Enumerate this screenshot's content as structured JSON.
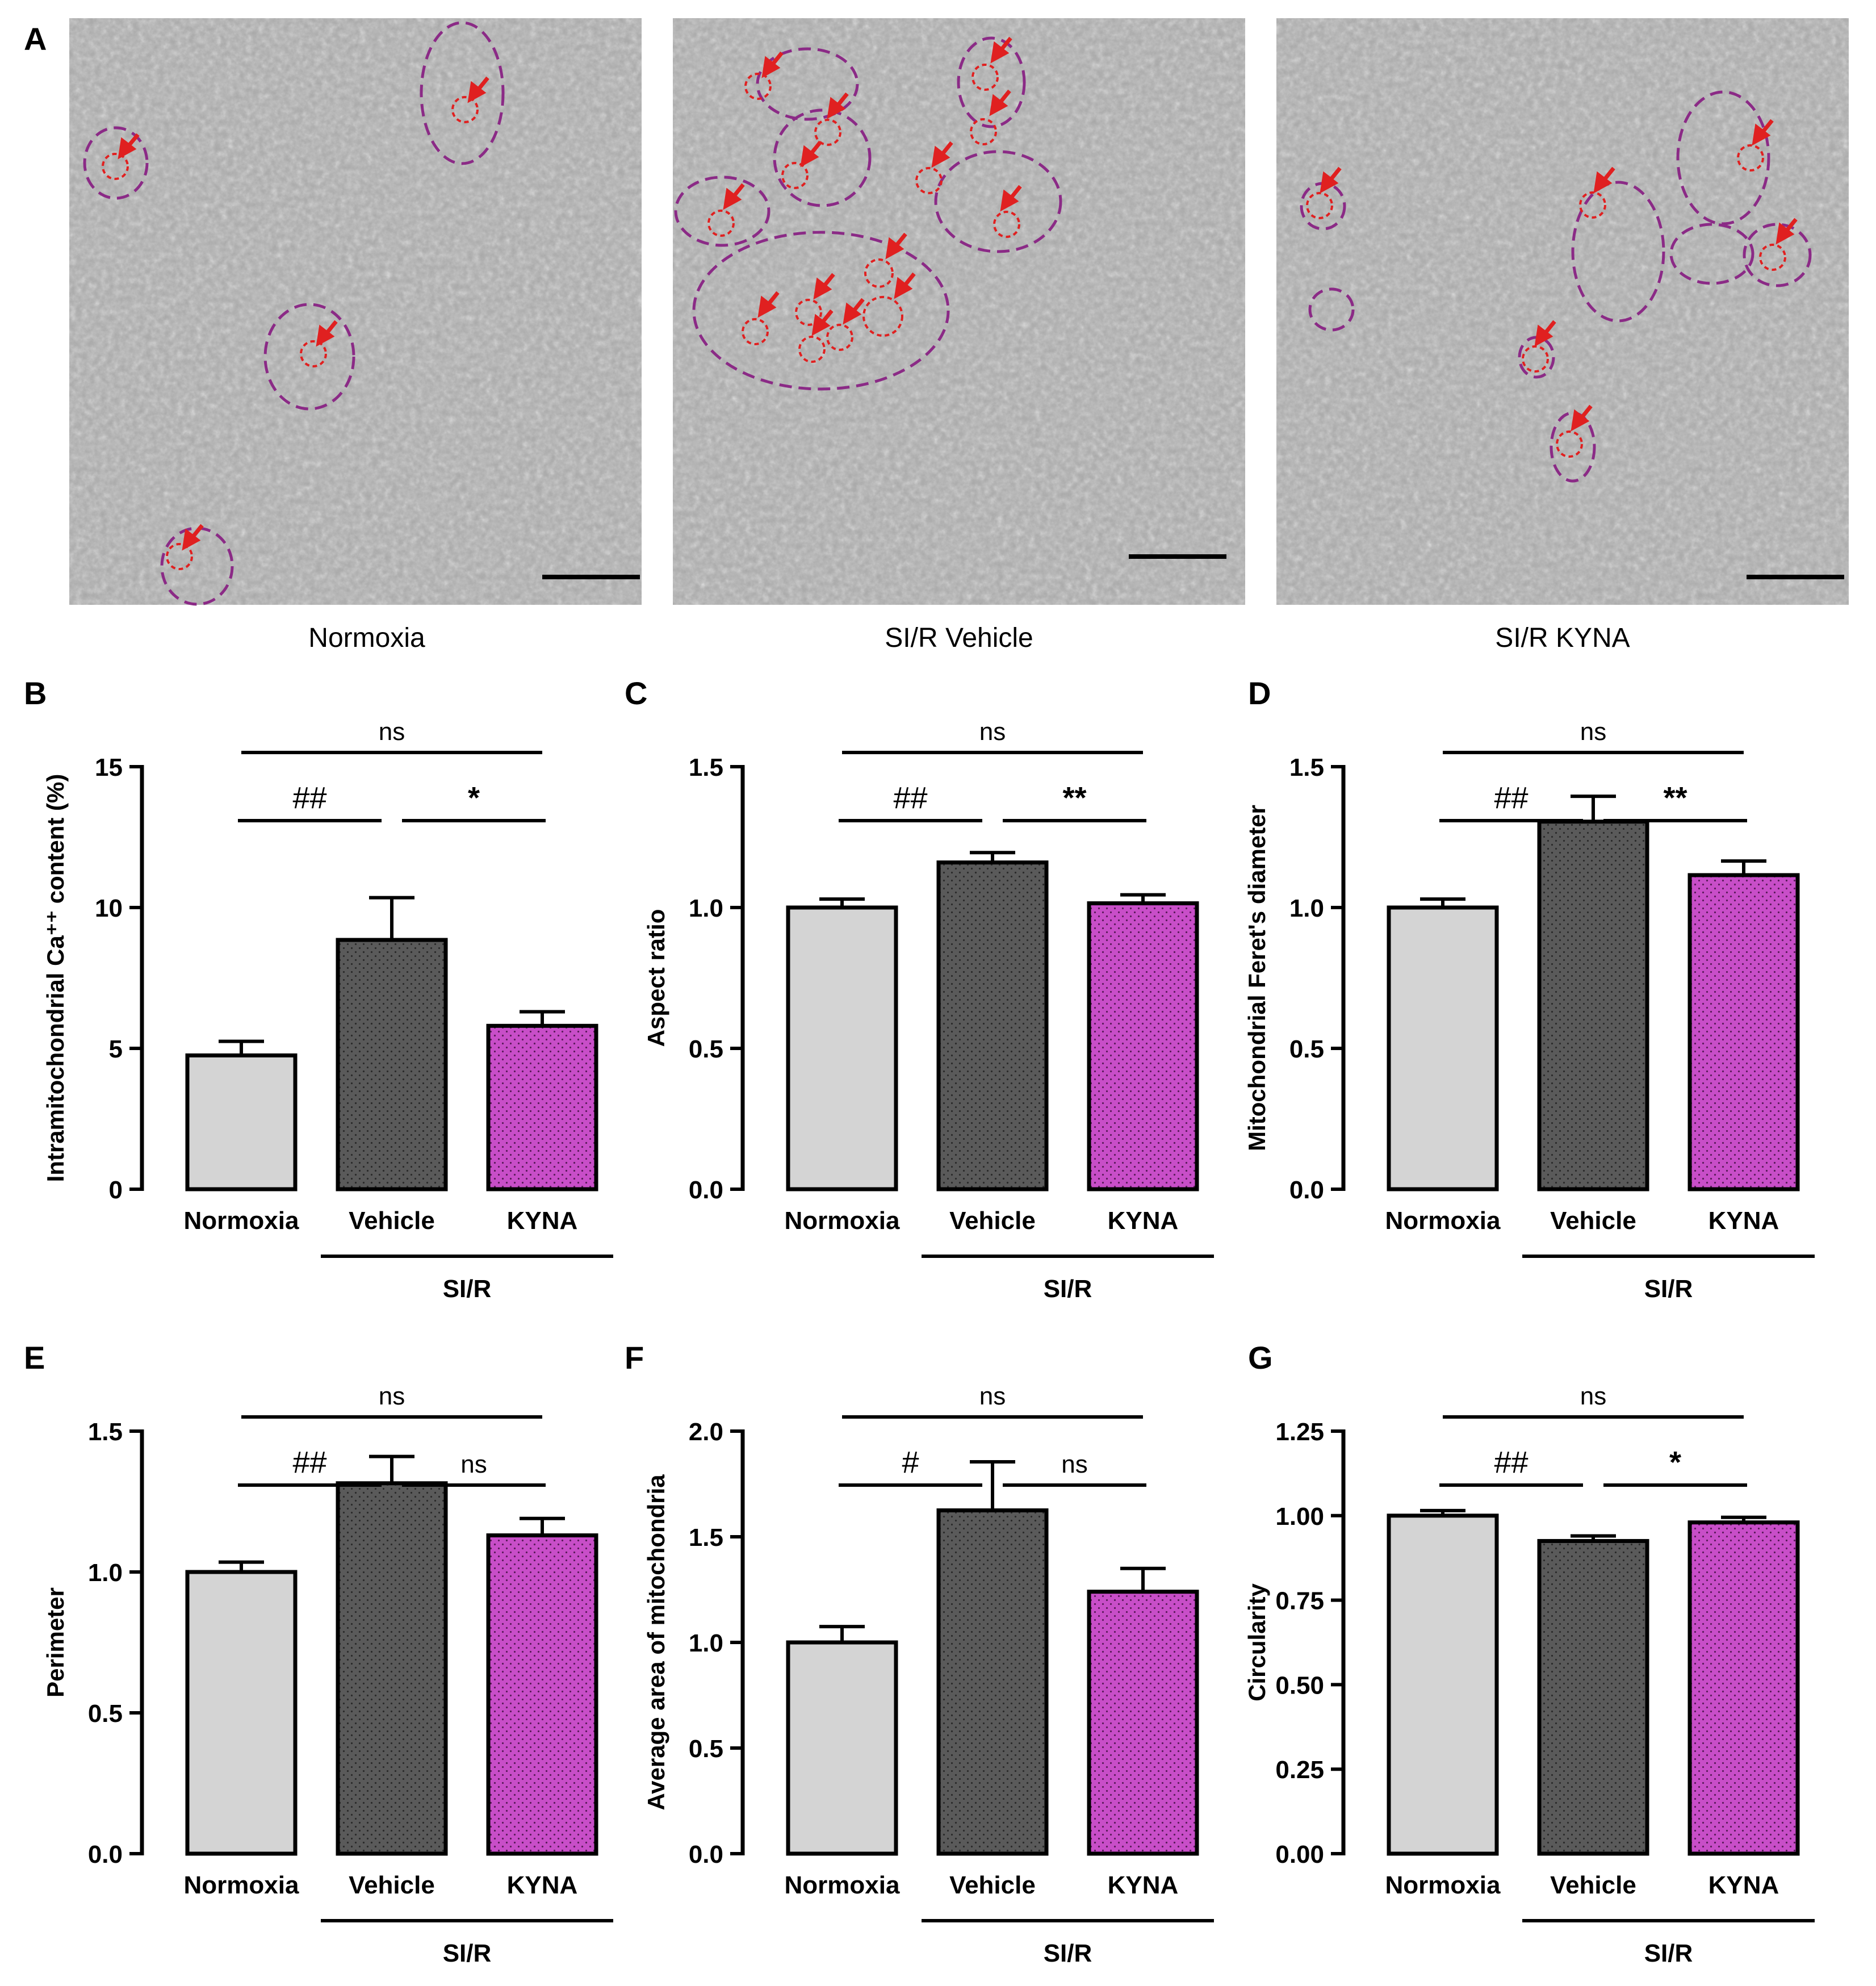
{
  "figure": {
    "panels": [
      {
        "letter": "A"
      },
      {
        "letter": "B"
      },
      {
        "letter": "C"
      },
      {
        "letter": "D"
      },
      {
        "letter": "E"
      },
      {
        "letter": "F"
      },
      {
        "letter": "G"
      }
    ],
    "micrographs": [
      {
        "caption": "Normoxia"
      },
      {
        "caption": "SI/R Vehicle"
      },
      {
        "caption": "SI/R KYNA"
      }
    ],
    "group_label": "SI/R"
  },
  "colors": {
    "normoxia": "#d4d4d4",
    "vehicle": "#5a5a5a",
    "kyna": "#c84ec8",
    "outline": "#000000",
    "mito_outline": "#8b2a86",
    "calcium_marker": "#e02020"
  },
  "chart_data": [
    {
      "type": "bar",
      "panel": "B",
      "categories": [
        "Normoxia",
        "Vehicle",
        "KYNA"
      ],
      "values": [
        4.75,
        8.85,
        5.8
      ],
      "errors": [
        0.5,
        1.5,
        0.5
      ],
      "ylabel": "Intramitochondrial Ca⁺⁺ content (%)",
      "ylim": [
        0,
        15
      ],
      "yticks": [
        "0",
        "5",
        "10",
        "15"
      ],
      "significance": [
        {
          "from": 0,
          "to": 1,
          "label": "##"
        },
        {
          "from": 1,
          "to": 2,
          "label": "*"
        },
        {
          "from": 0,
          "to": 2,
          "label": "ns"
        }
      ]
    },
    {
      "type": "bar",
      "panel": "C",
      "categories": [
        "Normoxia",
        "Vehicle",
        "KYNA"
      ],
      "values": [
        1.0,
        1.16,
        1.015
      ],
      "errors": [
        0.03,
        0.035,
        0.03
      ],
      "ylabel": "Aspect ratio",
      "ylim": [
        0,
        1.5
      ],
      "yticks": [
        "0.0",
        "0.5",
        "1.0",
        "1.5"
      ],
      "significance": [
        {
          "from": 0,
          "to": 1,
          "label": "##"
        },
        {
          "from": 1,
          "to": 2,
          "label": "**"
        },
        {
          "from": 0,
          "to": 2,
          "label": "ns"
        }
      ]
    },
    {
      "type": "bar",
      "panel": "D",
      "categories": [
        "Normoxia",
        "Vehicle",
        "KYNA"
      ],
      "values": [
        1.0,
        1.305,
        1.115
      ],
      "errors": [
        0.03,
        0.09,
        0.05
      ],
      "ylabel": "Mitochondrial Feret's diameter",
      "ylim": [
        0,
        1.5
      ],
      "yticks": [
        "0.0",
        "0.5",
        "1.0",
        "1.5"
      ],
      "significance": [
        {
          "from": 0,
          "to": 1,
          "label": "##"
        },
        {
          "from": 1,
          "to": 2,
          "label": "**"
        },
        {
          "from": 0,
          "to": 2,
          "label": "ns"
        }
      ]
    },
    {
      "type": "bar",
      "panel": "E",
      "categories": [
        "Normoxia",
        "Vehicle",
        "KYNA"
      ],
      "values": [
        1.0,
        1.315,
        1.13
      ],
      "errors": [
        0.035,
        0.095,
        0.06
      ],
      "ylabel": "Perimeter",
      "ylim": [
        0,
        1.5
      ],
      "yticks": [
        "0.0",
        "0.5",
        "1.0",
        "1.5"
      ],
      "significance": [
        {
          "from": 0,
          "to": 1,
          "label": "##"
        },
        {
          "from": 1,
          "to": 2,
          "label": "ns"
        },
        {
          "from": 0,
          "to": 2,
          "label": "ns"
        }
      ]
    },
    {
      "type": "bar",
      "panel": "F",
      "categories": [
        "Normoxia",
        "Vehicle",
        "KYNA"
      ],
      "values": [
        1.0,
        1.625,
        1.24
      ],
      "errors": [
        0.075,
        0.23,
        0.11
      ],
      "ylabel": "Average area of mitochondria",
      "ylim": [
        0,
        2.0
      ],
      "yticks": [
        "0.0",
        "0.5",
        "1.0",
        "1.5",
        "2.0"
      ],
      "significance": [
        {
          "from": 0,
          "to": 1,
          "label": "#"
        },
        {
          "from": 1,
          "to": 2,
          "label": "ns"
        },
        {
          "from": 0,
          "to": 2,
          "label": "ns"
        }
      ]
    },
    {
      "type": "bar",
      "panel": "G",
      "categories": [
        "Normoxia",
        "Vehicle",
        "KYNA"
      ],
      "values": [
        1.0,
        0.925,
        0.98
      ],
      "errors": [
        0.015,
        0.015,
        0.015
      ],
      "ylabel": "Circularity",
      "ylim": [
        0,
        1.25
      ],
      "yticks": [
        "0.00",
        "0.25",
        "0.50",
        "0.75",
        "1.00",
        "1.25"
      ],
      "significance": [
        {
          "from": 0,
          "to": 1,
          "label": "##"
        },
        {
          "from": 1,
          "to": 2,
          "label": "*"
        },
        {
          "from": 0,
          "to": 2,
          "label": "ns"
        }
      ]
    }
  ]
}
